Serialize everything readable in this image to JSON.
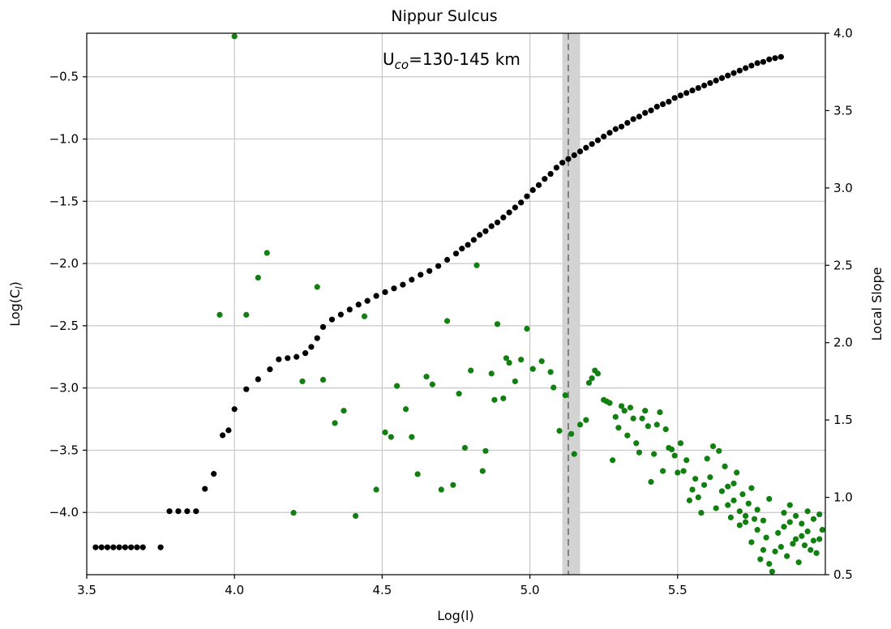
{
  "chart_data": {
    "type": "scatter",
    "title": "Nippur Sulcus",
    "xlabel": "Log(l)",
    "ylabel_left": "Log(C",
    "ylabel_left_sub": "l",
    "ylabel_left_end": ")",
    "ylabel_right": "Local Slope",
    "xlim": [
      3.5,
      6.0
    ],
    "ylim_left": [
      -4.5,
      -0.15
    ],
    "ylim_right": [
      0.5,
      4.0
    ],
    "x_ticks": [
      3.5,
      4.0,
      4.5,
      5.0,
      5.5
    ],
    "x_tick_labels": [
      "3.5",
      "4.0",
      "4.5",
      "5.0",
      "5.5"
    ],
    "y_left_ticks": [
      -0.5,
      -1.0,
      -1.5,
      -2.0,
      -2.5,
      -3.0,
      -3.5,
      -4.0
    ],
    "y_left_tick_labels": [
      "−0.5",
      "−1.0",
      "−1.5",
      "−2.0",
      "−2.5",
      "−3.0",
      "−3.5",
      "−4.0"
    ],
    "y_right_ticks": [
      4.0,
      3.5,
      3.0,
      2.5,
      2.0,
      1.5,
      1.0,
      0.5
    ],
    "y_right_tick_labels": [
      "4.0",
      "3.5",
      "3.0",
      "2.5",
      "2.0",
      "1.5",
      "1.0",
      "0.5"
    ],
    "grid": true,
    "annotation": {
      "main": "U",
      "sub": "co",
      "rest": "=130-145 km",
      "x": 5.0,
      "y_right": 3.85
    },
    "vline": {
      "x": 5.13,
      "band": [
        5.11,
        5.17
      ],
      "style": "dashed"
    },
    "colors": {
      "black_series": "#000000",
      "green_series": "#118011",
      "band": "#d3d3d3",
      "vline": "#808080",
      "grid": "#c8c8c8"
    },
    "series": [
      {
        "axis": "left",
        "color": "#000000",
        "points": [
          [
            3.53,
            -4.28
          ],
          [
            3.55,
            -4.28
          ],
          [
            3.57,
            -4.28
          ],
          [
            3.59,
            -4.28
          ],
          [
            3.61,
            -4.28
          ],
          [
            3.63,
            -4.28
          ],
          [
            3.65,
            -4.28
          ],
          [
            3.67,
            -4.28
          ],
          [
            3.69,
            -4.28
          ],
          [
            3.75,
            -4.28
          ],
          [
            3.78,
            -3.99
          ],
          [
            3.81,
            -3.99
          ],
          [
            3.84,
            -3.99
          ],
          [
            3.87,
            -3.99
          ],
          [
            3.9,
            -3.81
          ],
          [
            3.93,
            -3.69
          ],
          [
            3.96,
            -3.38
          ],
          [
            3.98,
            -3.34
          ],
          [
            4.0,
            -3.17
          ],
          [
            4.04,
            -3.01
          ],
          [
            4.08,
            -2.93
          ],
          [
            4.12,
            -2.85
          ],
          [
            4.15,
            -2.77
          ],
          [
            4.18,
            -2.76
          ],
          [
            4.21,
            -2.75
          ],
          [
            4.24,
            -2.72
          ],
          [
            4.26,
            -2.67
          ],
          [
            4.28,
            -2.6
          ],
          [
            4.3,
            -2.51
          ],
          [
            4.33,
            -2.45
          ],
          [
            4.36,
            -2.41
          ],
          [
            4.39,
            -2.37
          ],
          [
            4.42,
            -2.33
          ],
          [
            4.45,
            -2.3
          ],
          [
            4.48,
            -2.26
          ],
          [
            4.51,
            -2.23
          ],
          [
            4.54,
            -2.2
          ],
          [
            4.57,
            -2.17
          ],
          [
            4.6,
            -2.13
          ],
          [
            4.63,
            -2.09
          ],
          [
            4.66,
            -2.06
          ],
          [
            4.69,
            -2.02
          ],
          [
            4.72,
            -1.97
          ],
          [
            4.75,
            -1.92
          ],
          [
            4.77,
            -1.88
          ],
          [
            4.79,
            -1.85
          ],
          [
            4.81,
            -1.81
          ],
          [
            4.83,
            -1.77
          ],
          [
            4.85,
            -1.74
          ],
          [
            4.87,
            -1.7
          ],
          [
            4.89,
            -1.67
          ],
          [
            4.91,
            -1.63
          ],
          [
            4.93,
            -1.59
          ],
          [
            4.95,
            -1.55
          ],
          [
            4.97,
            -1.51
          ],
          [
            4.99,
            -1.46
          ],
          [
            5.01,
            -1.41
          ],
          [
            5.03,
            -1.37
          ],
          [
            5.05,
            -1.32
          ],
          [
            5.07,
            -1.28
          ],
          [
            5.09,
            -1.23
          ],
          [
            5.11,
            -1.19
          ],
          [
            5.13,
            -1.16
          ],
          [
            5.15,
            -1.13
          ],
          [
            5.17,
            -1.1
          ],
          [
            5.19,
            -1.07
          ],
          [
            5.21,
            -1.04
          ],
          [
            5.23,
            -1.01
          ],
          [
            5.25,
            -0.98
          ],
          [
            5.27,
            -0.95
          ],
          [
            5.29,
            -0.92
          ],
          [
            5.31,
            -0.9
          ],
          [
            5.33,
            -0.87
          ],
          [
            5.35,
            -0.84
          ],
          [
            5.37,
            -0.82
          ],
          [
            5.39,
            -0.79
          ],
          [
            5.41,
            -0.77
          ],
          [
            5.43,
            -0.74
          ],
          [
            5.45,
            -0.72
          ],
          [
            5.47,
            -0.7
          ],
          [
            5.49,
            -0.67
          ],
          [
            5.51,
            -0.65
          ],
          [
            5.53,
            -0.63
          ],
          [
            5.55,
            -0.61
          ],
          [
            5.57,
            -0.59
          ],
          [
            5.59,
            -0.57
          ],
          [
            5.61,
            -0.55
          ],
          [
            5.63,
            -0.53
          ],
          [
            5.65,
            -0.51
          ],
          [
            5.67,
            -0.49
          ],
          [
            5.69,
            -0.47
          ],
          [
            5.71,
            -0.45
          ],
          [
            5.73,
            -0.43
          ],
          [
            5.75,
            -0.41
          ],
          [
            5.77,
            -0.39
          ],
          [
            5.79,
            -0.38
          ],
          [
            5.81,
            -0.36
          ],
          [
            5.83,
            -0.35
          ],
          [
            5.85,
            -0.34
          ]
        ]
      },
      {
        "axis": "right",
        "color": "#118011",
        "points": [
          [
            4.0,
            3.98
          ],
          [
            3.95,
            2.18
          ],
          [
            4.04,
            2.18
          ],
          [
            4.08,
            2.42
          ],
          [
            4.11,
            2.58
          ],
          [
            4.28,
            2.36
          ],
          [
            4.2,
            0.9
          ],
          [
            4.23,
            1.75
          ],
          [
            4.3,
            1.76
          ],
          [
            4.34,
            1.48
          ],
          [
            4.37,
            1.56
          ],
          [
            4.41,
            0.88
          ],
          [
            4.44,
            2.17
          ],
          [
            4.48,
            1.05
          ],
          [
            4.51,
            1.42
          ],
          [
            4.53,
            1.39
          ],
          [
            4.55,
            1.72
          ],
          [
            4.58,
            1.57
          ],
          [
            4.6,
            1.39
          ],
          [
            4.62,
            1.15
          ],
          [
            4.65,
            1.78
          ],
          [
            4.67,
            1.73
          ],
          [
            4.7,
            1.05
          ],
          [
            4.72,
            2.14
          ],
          [
            4.74,
            1.08
          ],
          [
            4.76,
            1.67
          ],
          [
            4.78,
            1.32
          ],
          [
            4.8,
            1.82
          ],
          [
            4.82,
            2.5
          ],
          [
            4.84,
            1.17
          ],
          [
            4.85,
            1.3
          ],
          [
            4.87,
            1.8
          ],
          [
            4.88,
            1.63
          ],
          [
            4.89,
            2.12
          ],
          [
            4.91,
            1.64
          ],
          [
            4.92,
            1.9
          ],
          [
            4.93,
            1.87
          ],
          [
            4.95,
            1.75
          ],
          [
            4.97,
            1.89
          ],
          [
            4.99,
            2.09
          ],
          [
            5.01,
            1.83
          ],
          [
            5.04,
            1.88
          ],
          [
            5.07,
            1.81
          ],
          [
            5.08,
            1.71
          ],
          [
            5.1,
            1.43
          ],
          [
            5.12,
            1.66
          ],
          [
            5.14,
            1.41
          ],
          [
            5.15,
            1.28
          ],
          [
            5.17,
            1.47
          ],
          [
            5.19,
            1.5
          ],
          [
            5.2,
            1.74
          ],
          [
            5.21,
            1.77
          ],
          [
            5.22,
            1.82
          ],
          [
            5.23,
            1.8
          ],
          [
            5.25,
            1.63
          ],
          [
            5.26,
            1.62
          ],
          [
            5.27,
            1.61
          ],
          [
            5.28,
            1.24
          ],
          [
            5.29,
            1.52
          ],
          [
            5.3,
            1.45
          ],
          [
            5.31,
            1.59
          ],
          [
            5.32,
            1.56
          ],
          [
            5.33,
            1.4
          ],
          [
            5.34,
            1.58
          ],
          [
            5.35,
            1.51
          ],
          [
            5.36,
            1.35
          ],
          [
            5.37,
            1.29
          ],
          [
            5.38,
            1.51
          ],
          [
            5.39,
            1.56
          ],
          [
            5.4,
            1.46
          ],
          [
            5.41,
            1.1
          ],
          [
            5.42,
            1.28
          ],
          [
            5.43,
            1.47
          ],
          [
            5.44,
            1.55
          ],
          [
            5.45,
            1.17
          ],
          [
            5.46,
            1.44
          ],
          [
            5.47,
            1.32
          ],
          [
            5.48,
            1.31
          ],
          [
            5.49,
            1.27
          ],
          [
            5.5,
            1.16
          ],
          [
            5.51,
            1.35
          ],
          [
            5.52,
            1.17
          ],
          [
            5.53,
            1.24
          ],
          [
            5.54,
            0.98
          ],
          [
            5.55,
            1.05
          ],
          [
            5.56,
            1.12
          ],
          [
            5.57,
            1.0
          ],
          [
            5.58,
            0.9
          ],
          [
            5.59,
            1.08
          ],
          [
            5.6,
            1.25
          ],
          [
            5.61,
            1.13
          ],
          [
            5.62,
            1.33
          ],
          [
            5.63,
            0.93
          ],
          [
            5.64,
            1.3
          ],
          [
            5.65,
            1.04
          ],
          [
            5.66,
            1.2
          ],
          [
            5.67,
            0.95
          ],
          [
            5.68,
            0.87
          ],
          [
            5.69,
            1.09
          ],
          [
            5.7,
            1.16
          ],
          [
            5.71,
            0.82
          ],
          [
            5.72,
            1.02
          ],
          [
            5.73,
            0.88
          ],
          [
            5.74,
            0.96
          ],
          [
            5.75,
            0.71
          ],
          [
            5.76,
            0.86
          ],
          [
            5.77,
            0.79
          ],
          [
            5.78,
            0.6
          ],
          [
            5.79,
            0.66
          ],
          [
            5.8,
            0.74
          ],
          [
            5.81,
            0.57
          ],
          [
            5.82,
            0.52
          ],
          [
            5.83,
            0.65
          ],
          [
            5.84,
            0.77
          ],
          [
            5.85,
            0.68
          ],
          [
            5.86,
            0.81
          ],
          [
            5.87,
            0.62
          ],
          [
            5.88,
            0.84
          ],
          [
            5.89,
            0.7
          ],
          [
            5.9,
            0.73
          ],
          [
            5.91,
            0.58
          ],
          [
            5.92,
            0.75
          ],
          [
            5.93,
            0.69
          ],
          [
            5.94,
            0.78
          ],
          [
            5.95,
            0.66
          ],
          [
            5.96,
            0.72
          ],
          [
            5.97,
            0.64
          ],
          [
            5.98,
            0.73
          ],
          [
            5.99,
            0.79
          ],
          [
            5.86,
            0.9
          ],
          [
            5.88,
            0.95
          ],
          [
            5.9,
            0.88
          ],
          [
            5.92,
            0.83
          ],
          [
            5.94,
            0.91
          ],
          [
            5.96,
            0.86
          ],
          [
            5.98,
            0.89
          ],
          [
            5.75,
            1.06
          ],
          [
            5.77,
            0.92
          ],
          [
            5.79,
            0.85
          ],
          [
            5.81,
            0.99
          ],
          [
            5.73,
            0.84
          ],
          [
            5.71,
            0.91
          ],
          [
            5.69,
            0.98
          ],
          [
            5.67,
            1.07
          ]
        ]
      }
    ]
  }
}
